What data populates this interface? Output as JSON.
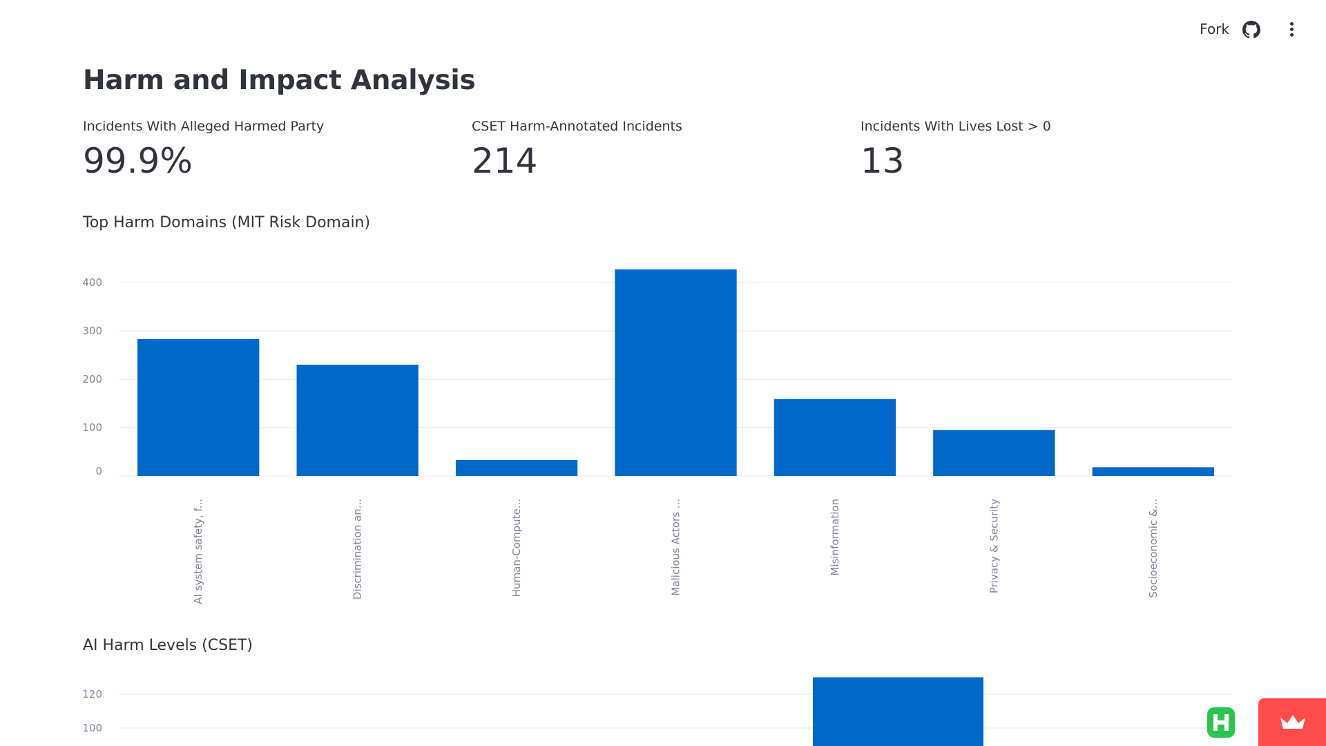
{
  "header": {
    "fork_label": "Fork",
    "github_icon": "github-icon",
    "menu_icon": "kebab-menu-icon"
  },
  "page": {
    "title": "Harm and Impact Analysis"
  },
  "metrics": [
    {
      "label": "Incidents With Alleged Harmed Party",
      "value": "99.9%"
    },
    {
      "label": "CSET Harm-Annotated Incidents",
      "value": "214"
    },
    {
      "label": "Incidents With Lives Lost > 0",
      "value": "13"
    }
  ],
  "sections": {
    "domains_title": "Top Harm Domains (MIT Risk Domain)",
    "levels_title": "AI Harm Levels (CSET)"
  },
  "colors": {
    "bar": "#0068c9",
    "grid": "#e6e6e6",
    "axis_text": "#808495"
  },
  "chart_data": [
    {
      "type": "bar",
      "title": "Top Harm Domains (MIT Risk Domain)",
      "categories": [
        "AI system safety, f...",
        "Discrimination an...",
        "Human-Compute...",
        "Malicious Actors ...",
        "Misinformation",
        "Privacy & Security",
        "Socioeconomic &..."
      ],
      "values": [
        283,
        230,
        33,
        427,
        159,
        95,
        18
      ],
      "yticks": [
        0,
        100,
        200,
        300,
        400
      ],
      "ylim": [
        0,
        450
      ],
      "grid": true
    },
    {
      "type": "bar",
      "title": "AI Harm Levels (CSET)",
      "yticks": [
        100,
        120
      ],
      "visible_bar_min_value": 130
    }
  ]
}
